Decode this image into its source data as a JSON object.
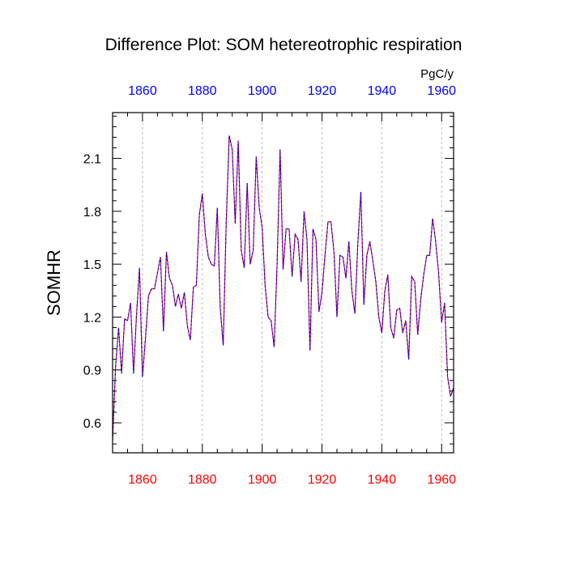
{
  "chart_data": {
    "type": "line",
    "title": "Difference Plot: SOM hetereotrophic respiration",
    "units": "PgC/y",
    "ylabel": "SOMHR",
    "xlabel": "",
    "xlim": [
      1850,
      1964
    ],
    "ylim": [
      0.43,
      2.36
    ],
    "x_ticks": [
      1860,
      1880,
      1900,
      1920,
      1940,
      1960
    ],
    "x_tick_labels": [
      "1860",
      "1880",
      "1900",
      "1920",
      "1940",
      "1960"
    ],
    "y_ticks": [
      0.6,
      0.9,
      1.2,
      1.5,
      1.8,
      2.1
    ],
    "y_tick_labels": [
      "0.6",
      "0.9",
      "1.2",
      "1.5",
      "1.8",
      "2.1"
    ],
    "grid": "x-dashed",
    "colors": {
      "bottom_axis_labels": "#ff0000",
      "top_axis_labels": "#0000ff",
      "series_a": "#ff0000",
      "series_b": "#0000ff",
      "grid": "#aaaaaa",
      "frame": "#000000"
    },
    "series": [
      {
        "name": "SOMHR",
        "x": [
          1850,
          1851,
          1852,
          1853,
          1854,
          1855,
          1856,
          1857,
          1858,
          1859,
          1860,
          1861,
          1862,
          1863,
          1864,
          1865,
          1866,
          1867,
          1868,
          1869,
          1870,
          1871,
          1872,
          1873,
          1874,
          1875,
          1876,
          1877,
          1878,
          1879,
          1880,
          1881,
          1882,
          1883,
          1884,
          1885,
          1886,
          1887,
          1888,
          1889,
          1890,
          1891,
          1892,
          1893,
          1894,
          1895,
          1896,
          1897,
          1898,
          1899,
          1900,
          1901,
          1902,
          1903,
          1904,
          1905,
          1906,
          1907,
          1908,
          1909,
          1910,
          1911,
          1912,
          1913,
          1914,
          1915,
          1916,
          1917,
          1918,
          1919,
          1920,
          1921,
          1922,
          1923,
          1924,
          1925,
          1926,
          1927,
          1928,
          1929,
          1930,
          1931,
          1932,
          1933,
          1934,
          1935,
          1936,
          1937,
          1938,
          1939,
          1940,
          1941,
          1942,
          1943,
          1944,
          1945,
          1946,
          1947,
          1948,
          1949,
          1950,
          1951,
          1952,
          1953,
          1954,
          1955,
          1956,
          1957,
          1958,
          1959,
          1960,
          1961,
          1962,
          1963,
          1964
        ],
        "values": [
          0.5,
          0.92,
          1.14,
          0.88,
          1.19,
          1.18,
          1.28,
          0.88,
          1.21,
          1.48,
          0.86,
          1.08,
          1.32,
          1.36,
          1.36,
          1.45,
          1.54,
          1.12,
          1.57,
          1.42,
          1.38,
          1.26,
          1.33,
          1.25,
          1.34,
          1.15,
          1.07,
          1.37,
          1.38,
          1.78,
          1.9,
          1.67,
          1.54,
          1.5,
          1.49,
          1.82,
          1.25,
          1.04,
          1.74,
          2.23,
          2.15,
          1.73,
          2.2,
          1.58,
          1.48,
          1.96,
          1.5,
          1.58,
          2.11,
          1.82,
          1.71,
          1.38,
          1.2,
          1.18,
          1.03,
          1.5,
          2.15,
          1.47,
          1.7,
          1.7,
          1.43,
          1.67,
          1.64,
          1.4,
          1.8,
          1.64,
          1.01,
          1.7,
          1.64,
          1.23,
          1.34,
          1.55,
          1.74,
          1.74,
          1.57,
          1.2,
          1.55,
          1.54,
          1.42,
          1.63,
          1.35,
          1.22,
          1.62,
          1.91,
          1.27,
          1.55,
          1.63,
          1.52,
          1.4,
          1.2,
          1.11,
          1.35,
          1.44,
          1.14,
          1.08,
          1.24,
          1.25,
          1.11,
          1.18,
          0.96,
          1.43,
          1.4,
          1.1,
          1.3,
          1.44,
          1.55,
          1.55,
          1.76,
          1.63,
          1.45,
          1.17,
          1.28,
          0.86,
          0.75,
          0.8
        ]
      }
    ]
  }
}
